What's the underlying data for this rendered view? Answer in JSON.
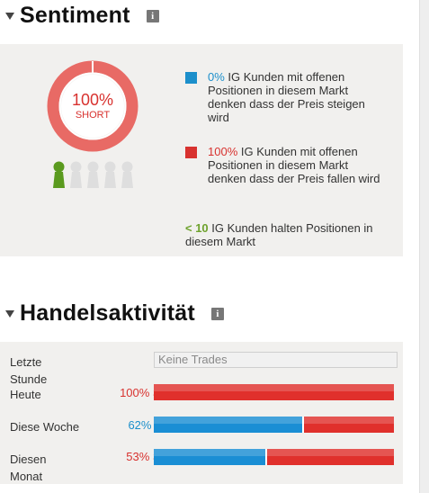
{
  "sentiment": {
    "title": "Sentiment",
    "info_icon": "i",
    "donut": {
      "percent_text": "100%",
      "label": "SHORT",
      "short_fraction": 1.0
    },
    "people": {
      "highlighted": 1,
      "total": 5,
      "highlight_color": "#5a9a1e",
      "muted_color": "#dedede"
    },
    "legend": [
      {
        "color": "#1c8fcb",
        "pct": "0%",
        "text": " IG Kunden mit offenen Positionen in diesem Markt denken dass der Preis steigen wird"
      },
      {
        "color": "#d8322f",
        "pct": "100%",
        "text": " IG Kunden mit offenen Positionen in diesem Markt denken dass der Preis fallen wird"
      }
    ],
    "count_note": {
      "value": "< 10",
      "text": " IG Kunden halten Positionen in diesem Markt"
    }
  },
  "activity": {
    "title": "Handelsaktivität",
    "info_icon": "i",
    "rows": [
      {
        "label": "Letzte Stunde",
        "value": "",
        "empty_text": "Keine Trades",
        "long_fraction": null
      },
      {
        "label": "Heute",
        "value": "100% Short",
        "value_color": "#d8322f",
        "long_fraction": 0.0
      },
      {
        "label": "Diese Woche",
        "value": "62% Long",
        "value_color": "#1c8fcb",
        "long_fraction": 0.62
      },
      {
        "label": "Diesen Monat",
        "value": "53% Short",
        "value_color": "#d8322f",
        "long_fraction": 0.47
      }
    ]
  },
  "colors": {
    "long": "#1a8ed4",
    "short": "#e0302c",
    "panel": "#f1f0ee"
  }
}
